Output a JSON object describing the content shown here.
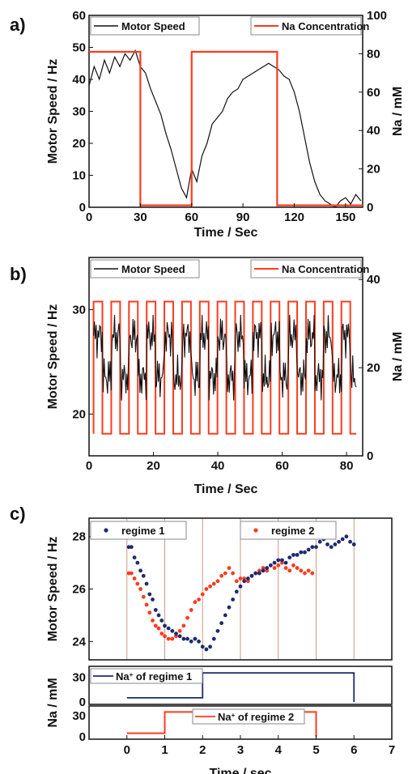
{
  "colors": {
    "speed": "#111111",
    "sodium": "#ff3b1f",
    "regime1": "#1f2a6e",
    "regime2": "#ff3b1f",
    "vline": "#c99a86"
  },
  "chart_data": [
    {
      "panel": "a)",
      "type": "line",
      "xlabel": "Time / Sec",
      "ylabel_left": "Motor Speed / Hz",
      "ylabel_right": "Na / mM",
      "xlim": [
        0,
        160
      ],
      "ylim_left": [
        0,
        60
      ],
      "ylim_right": [
        0,
        100
      ],
      "xticks": [
        0,
        30,
        60,
        90,
        120,
        150
      ],
      "yticks_left": [
        0,
        10,
        20,
        30,
        40,
        50,
        60
      ],
      "yticks_right": [
        0,
        20,
        40,
        60,
        80,
        100
      ],
      "legend": [
        "Motor Speed",
        "Na Concentration"
      ],
      "series": [
        {
          "name": "Motor Speed",
          "axis": "left",
          "x": [
            0,
            3,
            6,
            9,
            12,
            15,
            18,
            21,
            24,
            27,
            30,
            33,
            36,
            39,
            42,
            45,
            48,
            51,
            54,
            57,
            60,
            63,
            66,
            69,
            72,
            75,
            78,
            81,
            84,
            87,
            90,
            93,
            96,
            99,
            102,
            105,
            108,
            111,
            114,
            117,
            120,
            123,
            126,
            129,
            132,
            135,
            138,
            141,
            144,
            147,
            150,
            153,
            156,
            159
          ],
          "values": [
            38,
            44,
            40,
            46,
            42,
            47,
            44,
            48,
            46,
            49,
            44,
            42,
            37,
            33,
            29,
            23,
            18,
            12,
            6,
            3,
            12,
            8,
            16,
            20,
            26,
            28,
            30,
            34,
            36,
            37,
            40,
            41,
            42,
            43,
            44,
            45,
            44,
            43,
            41,
            40,
            36,
            30,
            22,
            14,
            8,
            4,
            2,
            1,
            0,
            2,
            3,
            1,
            4,
            2
          ]
        },
        {
          "name": "Na Concentration",
          "axis": "right",
          "steps": [
            [
              0,
              81
            ],
            [
              30,
              81
            ],
            [
              30,
              1
            ],
            [
              60,
              1
            ],
            [
              60,
              81
            ],
            [
              110,
              81
            ],
            [
              110,
              1
            ],
            [
              160,
              1
            ]
          ]
        }
      ]
    },
    {
      "panel": "b)",
      "type": "line",
      "xlabel": "Time / Sec",
      "ylabel_left": "Motor Speed / Hz",
      "ylabel_right": "Na / mM",
      "xlim": [
        0,
        85
      ],
      "ylim_left": [
        16,
        35
      ],
      "ylim_right": [
        0,
        45
      ],
      "xticks": [
        0,
        20,
        40,
        60,
        80
      ],
      "yticks_left": [
        20,
        30
      ],
      "yticks_right": [
        0,
        20,
        40
      ],
      "legend": [
        "Motor Speed",
        "Na Concentration"
      ],
      "na_pulse": {
        "period": 5.5,
        "high": 35,
        "low": 5,
        "start": 1.4,
        "end": 83
      },
      "speed_range": [
        20,
        29.5
      ]
    },
    {
      "panel": "c)",
      "type": "scatter",
      "xlabel": "Time / sec",
      "ylabel_top": "Motor Speed / Hz",
      "ylabel_bottom": "Na / mM",
      "xlim": [
        -1,
        7
      ],
      "ylim_top": [
        23.3,
        28.7
      ],
      "xticks": [
        0,
        1,
        2,
        3,
        4,
        5,
        6,
        7
      ],
      "yticks_top": [
        24,
        26,
        28
      ],
      "yticks_na": [
        0,
        30
      ],
      "vlines": [
        0,
        1,
        2,
        3,
        4,
        5,
        6
      ],
      "legend": [
        "regime 1",
        "regime 2"
      ],
      "series": [
        {
          "name": "regime 1",
          "x": [
            0.05,
            0.12,
            0.2,
            0.28,
            0.36,
            0.44,
            0.52,
            0.6,
            0.68,
            0.76,
            0.84,
            0.92,
            1.0,
            1.1,
            1.2,
            1.3,
            1.4,
            1.5,
            1.6,
            1.7,
            1.8,
            1.9,
            2.0,
            2.1,
            2.2,
            2.3,
            2.4,
            2.5,
            2.6,
            2.7,
            2.8,
            2.9,
            3.0,
            3.1,
            3.2,
            3.3,
            3.4,
            3.5,
            3.6,
            3.7,
            3.8,
            3.9,
            4.0,
            4.1,
            4.2,
            4.3,
            4.4,
            4.5,
            4.6,
            4.7,
            4.8,
            4.9,
            5.0,
            5.1,
            5.2,
            5.3,
            5.4,
            5.5,
            5.6,
            5.7,
            5.8,
            5.9,
            6.0
          ],
          "values": [
            27.6,
            27.6,
            27.2,
            27.0,
            26.7,
            26.5,
            26.2,
            25.8,
            25.6,
            25.2,
            25.0,
            24.8,
            24.6,
            24.5,
            24.4,
            24.3,
            24.2,
            24.1,
            24.1,
            24.0,
            24.1,
            24.0,
            23.8,
            23.7,
            23.8,
            24.1,
            24.4,
            24.7,
            25.0,
            25.3,
            25.6,
            25.9,
            26.1,
            26.3,
            26.4,
            26.5,
            26.6,
            26.6,
            26.7,
            26.8,
            26.9,
            27.0,
            27.1,
            27.1,
            27.0,
            27.2,
            27.3,
            27.3,
            27.4,
            27.4,
            27.5,
            27.6,
            27.6,
            27.8,
            27.9,
            27.7,
            27.6,
            27.7,
            27.8,
            27.9,
            28.0,
            27.8,
            27.7
          ]
        },
        {
          "name": "regime 2",
          "x": [
            0.05,
            0.12,
            0.2,
            0.28,
            0.36,
            0.44,
            0.52,
            0.6,
            0.68,
            0.76,
            0.84,
            0.92,
            1.0,
            1.1,
            1.2,
            1.3,
            1.4,
            1.5,
            1.6,
            1.7,
            1.8,
            1.9,
            2.0,
            2.1,
            2.2,
            2.3,
            2.4,
            2.5,
            2.6,
            2.7,
            2.8,
            2.9,
            3.0,
            3.1,
            3.2,
            3.3,
            3.4,
            3.5,
            3.6,
            3.7,
            3.8,
            3.9,
            4.0,
            4.1,
            4.2,
            4.3,
            4.4,
            4.5,
            4.6,
            4.7,
            4.8,
            4.9
          ],
          "values": [
            26.6,
            26.6,
            26.4,
            26.2,
            26.0,
            25.7,
            25.4,
            25.1,
            24.8,
            24.6,
            24.5,
            24.3,
            24.2,
            24.1,
            24.1,
            24.2,
            24.4,
            24.6,
            24.9,
            25.2,
            25.5,
            25.6,
            25.8,
            26.0,
            26.1,
            26.2,
            26.3,
            26.5,
            26.6,
            26.8,
            26.6,
            26.3,
            26.4,
            26.4,
            26.3,
            26.5,
            26.6,
            26.7,
            26.8,
            26.7,
            26.9,
            26.8,
            26.9,
            27.0,
            26.8,
            26.7,
            26.9,
            26.8,
            26.7,
            26.6,
            26.7,
            26.6
          ]
        },
        {
          "name": "Na+ of regime 1",
          "axis": "na_top",
          "steps": [
            [
              0,
              5
            ],
            [
              2,
              5
            ],
            [
              2,
              35
            ],
            [
              6,
              35
            ],
            [
              6,
              0
            ]
          ]
        },
        {
          "name": "Na+ of regime 2",
          "axis": "na_bottom",
          "steps": [
            [
              0,
              5
            ],
            [
              1,
              5
            ],
            [
              1,
              35
            ],
            [
              5,
              35
            ],
            [
              5,
              0
            ]
          ]
        }
      ],
      "legend_na1": [
        "Na",
        "+",
        " of regime 1"
      ],
      "legend_na2": [
        "Na",
        "+",
        " of regime 2"
      ]
    }
  ]
}
